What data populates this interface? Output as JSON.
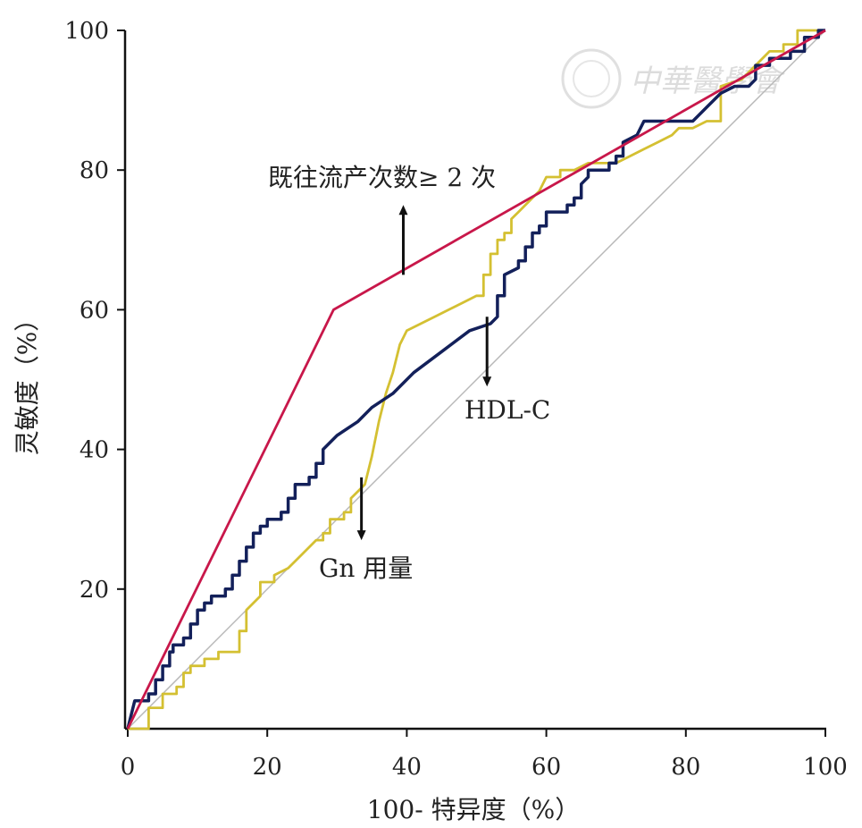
{
  "watermark": "中華醫學會",
  "chart_data": {
    "type": "line",
    "xlabel": "100- 特异度（%）",
    "ylabel": "灵敏度（%）",
    "xlim": [
      0,
      100
    ],
    "ylim": [
      0,
      100
    ],
    "x_ticks": [
      "0",
      "20",
      "40",
      "60",
      "80",
      "100"
    ],
    "y_ticks": [
      "20",
      "40",
      "60",
      "80",
      "100"
    ],
    "grid": false,
    "colors": {
      "history": "#c8174a",
      "hdl": "#13205a",
      "gn": "#d4c032",
      "reference": "#b8b8b8"
    },
    "series": [
      {
        "name": "既往流产次数≥ 2 次",
        "color": "#c8174a",
        "step": false,
        "points": [
          [
            0,
            0
          ],
          [
            29.5,
            60
          ],
          [
            100,
            100
          ]
        ]
      },
      {
        "name": "HDL-C",
        "color": "#13205a",
        "step": true,
        "points": [
          [
            0,
            0
          ],
          [
            0.5,
            2
          ],
          [
            1,
            4
          ],
          [
            3,
            4
          ],
          [
            3,
            5
          ],
          [
            4,
            5
          ],
          [
            4,
            7
          ],
          [
            5,
            7
          ],
          [
            5,
            9
          ],
          [
            6,
            9
          ],
          [
            6,
            11
          ],
          [
            6.5,
            11
          ],
          [
            6.5,
            12
          ],
          [
            8,
            12
          ],
          [
            8,
            13
          ],
          [
            9,
            13
          ],
          [
            9,
            15
          ],
          [
            10,
            15
          ],
          [
            10,
            17
          ],
          [
            11,
            17
          ],
          [
            11,
            18
          ],
          [
            12,
            18
          ],
          [
            12,
            19
          ],
          [
            14,
            19
          ],
          [
            14,
            20
          ],
          [
            15,
            20
          ],
          [
            15,
            22
          ],
          [
            16,
            22
          ],
          [
            16,
            24
          ],
          [
            17,
            24
          ],
          [
            17,
            26
          ],
          [
            18,
            26
          ],
          [
            18,
            28
          ],
          [
            19,
            28
          ],
          [
            19,
            29
          ],
          [
            20,
            29
          ],
          [
            20,
            30
          ],
          [
            22,
            30
          ],
          [
            22,
            31
          ],
          [
            23,
            31
          ],
          [
            23,
            33
          ],
          [
            24,
            33
          ],
          [
            24,
            35
          ],
          [
            26,
            35
          ],
          [
            26,
            36
          ],
          [
            27,
            36
          ],
          [
            27,
            38
          ],
          [
            28,
            38
          ],
          [
            28,
            40
          ],
          [
            30,
            42
          ],
          [
            33,
            44
          ],
          [
            35,
            46
          ],
          [
            38,
            48
          ],
          [
            41,
            51
          ],
          [
            45,
            54
          ],
          [
            49,
            57
          ],
          [
            52,
            58
          ],
          [
            53,
            59
          ],
          [
            53,
            62
          ],
          [
            54,
            62
          ],
          [
            54,
            65
          ],
          [
            56,
            66
          ],
          [
            56,
            67
          ],
          [
            57,
            67
          ],
          [
            57,
            69
          ],
          [
            58,
            69
          ],
          [
            58,
            71
          ],
          [
            59,
            71
          ],
          [
            59,
            72
          ],
          [
            60,
            72
          ],
          [
            60,
            74
          ],
          [
            63,
            74
          ],
          [
            63,
            75
          ],
          [
            64,
            75
          ],
          [
            64,
            76
          ],
          [
            65,
            76
          ],
          [
            65,
            78
          ],
          [
            66,
            79
          ],
          [
            66,
            80
          ],
          [
            69,
            80
          ],
          [
            69,
            81
          ],
          [
            70,
            81
          ],
          [
            70,
            82
          ],
          [
            71,
            82
          ],
          [
            71,
            84
          ],
          [
            73,
            85
          ],
          [
            74,
            87
          ],
          [
            77,
            87
          ],
          [
            78,
            87
          ],
          [
            81,
            87
          ],
          [
            83,
            89
          ],
          [
            85,
            91
          ],
          [
            87,
            92
          ],
          [
            89,
            92
          ],
          [
            90,
            93
          ],
          [
            90,
            95
          ],
          [
            92,
            95
          ],
          [
            92,
            96
          ],
          [
            95,
            96
          ],
          [
            95,
            97
          ],
          [
            97,
            97
          ],
          [
            97,
            99
          ],
          [
            99,
            99
          ],
          [
            99,
            100
          ],
          [
            100,
            100
          ]
        ]
      },
      {
        "name": "Gn 用量",
        "color": "#d4c032",
        "step": true,
        "points": [
          [
            0,
            0
          ],
          [
            3,
            0
          ],
          [
            3,
            3
          ],
          [
            5,
            3
          ],
          [
            5,
            5
          ],
          [
            7,
            5
          ],
          [
            7,
            6
          ],
          [
            8,
            6
          ],
          [
            8,
            8
          ],
          [
            9,
            8
          ],
          [
            9,
            9
          ],
          [
            11,
            9
          ],
          [
            11,
            10
          ],
          [
            13,
            10
          ],
          [
            13,
            11
          ],
          [
            16,
            11
          ],
          [
            16,
            14
          ],
          [
            17,
            14
          ],
          [
            17,
            17
          ],
          [
            19,
            19
          ],
          [
            19,
            21
          ],
          [
            21,
            21
          ],
          [
            21,
            22
          ],
          [
            23,
            23
          ],
          [
            25,
            25
          ],
          [
            27,
            27
          ],
          [
            28,
            27
          ],
          [
            28,
            28
          ],
          [
            29,
            28
          ],
          [
            29,
            30
          ],
          [
            31,
            30
          ],
          [
            31,
            31
          ],
          [
            32,
            31
          ],
          [
            32,
            33
          ],
          [
            34,
            35
          ],
          [
            35,
            39
          ],
          [
            36,
            44
          ],
          [
            37,
            48
          ],
          [
            38,
            51
          ],
          [
            39,
            55
          ],
          [
            40,
            57
          ],
          [
            42,
            58
          ],
          [
            44,
            59
          ],
          [
            46,
            60
          ],
          [
            48,
            61
          ],
          [
            50,
            62
          ],
          [
            51,
            62
          ],
          [
            51,
            65
          ],
          [
            52,
            65
          ],
          [
            52,
            68
          ],
          [
            53,
            68
          ],
          [
            53,
            70
          ],
          [
            54,
            70
          ],
          [
            54,
            71
          ],
          [
            55,
            71
          ],
          [
            55,
            73
          ],
          [
            56,
            74
          ],
          [
            57,
            75
          ],
          [
            58,
            76
          ],
          [
            59,
            77
          ],
          [
            60,
            79
          ],
          [
            62,
            79
          ],
          [
            62,
            80
          ],
          [
            64,
            80
          ],
          [
            66,
            81
          ],
          [
            70,
            81
          ],
          [
            72,
            82
          ],
          [
            74,
            83
          ],
          [
            76,
            84
          ],
          [
            78,
            85
          ],
          [
            79,
            86
          ],
          [
            81,
            86
          ],
          [
            83,
            87
          ],
          [
            85,
            87
          ],
          [
            85,
            92
          ],
          [
            88,
            93
          ],
          [
            90,
            95
          ],
          [
            92,
            97
          ],
          [
            94,
            97
          ],
          [
            94,
            98
          ],
          [
            96,
            98
          ],
          [
            96,
            100
          ],
          [
            100,
            100
          ]
        ]
      }
    ],
    "reference_line": [
      [
        0,
        0
      ],
      [
        100,
        100
      ]
    ],
    "annotations": [
      {
        "text": "既往流产次数≥ 2 次",
        "arrow_from": [
          39.5,
          65
        ],
        "arrow_to": [
          39.5,
          75
        ]
      },
      {
        "text": "HDL-C",
        "arrow_from": [
          51.5,
          59
        ],
        "arrow_to": [
          51.5,
          49
        ]
      },
      {
        "text": "Gn 用量",
        "arrow_from": [
          33.5,
          36
        ],
        "arrow_to": [
          33.5,
          27
        ]
      }
    ]
  }
}
